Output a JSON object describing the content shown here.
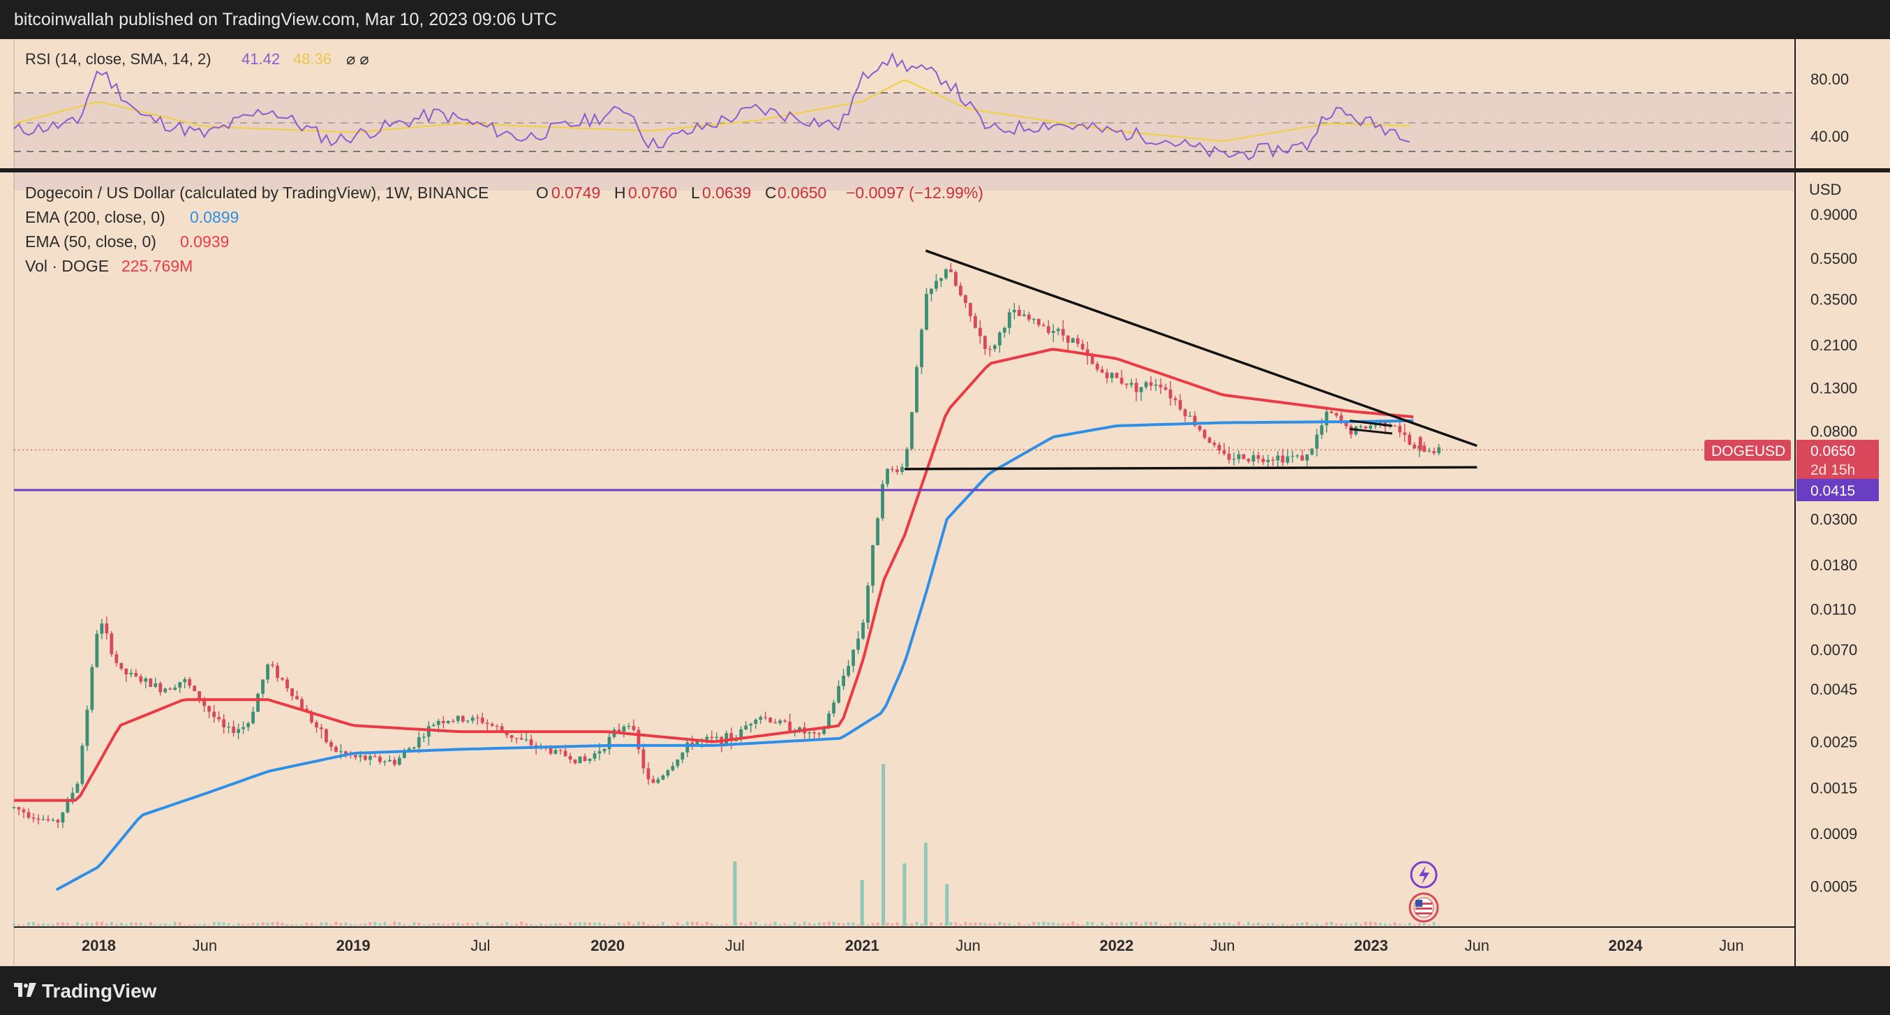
{
  "header": {
    "published": "bitcoinwallah published on TradingView.com, Mar 10, 2023 09:06 UTC"
  },
  "footer": {
    "brand": "TradingView"
  },
  "colors": {
    "background": "#f4dfca",
    "ema200": "#2f8fe6",
    "ema50": "#ea3a46",
    "rsi": "#8c5bd0",
    "rsi_sma": "#f0d040",
    "support": "#6a3ec2",
    "up": "#3b8f74",
    "down": "#d8485a"
  },
  "rsi_pane": {
    "legend": {
      "prefix": "RSI (14, close, SMA, 14, 2)",
      "rsi_value": "41.42",
      "sma_value": "48.36",
      "extra": "⌀ ⌀"
    },
    "scale": [
      "80.00",
      "40.00"
    ]
  },
  "main_pane": {
    "legend": {
      "title": "Dogecoin / US Dollar (calculated by TradingView), 1W, BINANCE",
      "o_label": "O",
      "o": "0.0749",
      "h_label": "H",
      "h": "0.0760",
      "l_label": "L",
      "l": "0.0639",
      "c_label": "C",
      "c": "0.0650",
      "chg": "−0.0097 (−12.99%)",
      "ema200": "EMA (200, close, 0)",
      "ema200_val": "0.0899",
      "ema50": "EMA (50, close, 0)",
      "ema50_val": "0.0939",
      "vol": "Vol · DOGE",
      "vol_val": "225.769M"
    },
    "currency": "USD",
    "price_badge": {
      "symbol": "DOGEUSD",
      "price": "0.0650",
      "countdown": "2d 15h"
    },
    "support_badge": "0.0415"
  },
  "chart_data": {
    "type": "candlestick",
    "title": "Dogecoin / US Dollar (calculated by TradingView), 1W, BINANCE",
    "y_scale": "log",
    "y_ticks": [
      "0.9000",
      "0.5500",
      "0.3500",
      "0.2100",
      "0.1300",
      "0.0800",
      "0.0650",
      "0.0415",
      "0.0300",
      "0.0180",
      "0.0110",
      "0.0070",
      "0.0045",
      "0.0025",
      "0.0015",
      "0.0009",
      "0.0005"
    ],
    "x_ticks": [
      "2018",
      "Jun",
      "2019",
      "Jul",
      "2020",
      "Jul",
      "2021",
      "Jun",
      "2022",
      "Jun",
      "2023",
      "Jun",
      "2024",
      "Jun"
    ],
    "x_range": [
      "2017-09",
      "2024-09"
    ],
    "last_ohlc": {
      "open": 0.0749,
      "high": 0.076,
      "low": 0.0639,
      "close": 0.065
    },
    "ema200_last": 0.0899,
    "ema50_last": 0.0939,
    "volume_last": "225.769M",
    "horizontal_line": 0.0415,
    "trendlines": [
      {
        "label": "descending resistance",
        "from": [
          "2021-04",
          0.6
        ],
        "to": [
          "2023-06",
          0.068
        ]
      },
      {
        "label": "flat support",
        "from": [
          "2021-03",
          0.0525
        ],
        "to": [
          "2023-06",
          0.0535
        ]
      }
    ],
    "price_path": [
      [
        "2017-09",
        0.0012
      ],
      [
        "2017-11",
        0.001
      ],
      [
        "2017-12",
        0.0016
      ],
      [
        "2018-01",
        0.01
      ],
      [
        "2018-02",
        0.0055
      ],
      [
        "2018-04",
        0.0045
      ],
      [
        "2018-05",
        0.005
      ],
      [
        "2018-07",
        0.0028
      ],
      [
        "2018-08",
        0.003
      ],
      [
        "2018-09",
        0.006
      ],
      [
        "2018-10",
        0.0045
      ],
      [
        "2018-12",
        0.0023
      ],
      [
        "2019-01",
        0.0021
      ],
      [
        "2019-03",
        0.002
      ],
      [
        "2019-05",
        0.0032
      ],
      [
        "2019-07",
        0.0032
      ],
      [
        "2019-09",
        0.0025
      ],
      [
        "2019-12",
        0.002
      ],
      [
        "2020-02",
        0.0032
      ],
      [
        "2020-03",
        0.0015
      ],
      [
        "2020-05",
        0.0025
      ],
      [
        "2020-07",
        0.0026
      ],
      [
        "2020-08",
        0.0034
      ],
      [
        "2020-11",
        0.0026
      ],
      [
        "2021-01",
        0.009
      ],
      [
        "2021-02",
        0.05
      ],
      [
        "2021-03",
        0.054
      ],
      [
        "2021-04",
        0.35
      ],
      [
        "2021-05",
        0.5
      ],
      [
        "2021-06",
        0.3
      ],
      [
        "2021-07",
        0.19
      ],
      [
        "2021-08",
        0.3
      ],
      [
        "2021-10",
        0.25
      ],
      [
        "2021-11",
        0.22
      ],
      [
        "2021-12",
        0.16
      ],
      [
        "2022-02",
        0.13
      ],
      [
        "2022-03",
        0.14
      ],
      [
        "2022-05",
        0.08
      ],
      [
        "2022-06",
        0.06
      ],
      [
        "2022-09",
        0.06
      ],
      [
        "2022-10",
        0.06
      ],
      [
        "2022-11",
        0.1
      ],
      [
        "2022-12",
        0.08
      ],
      [
        "2023-01",
        0.085
      ],
      [
        "2023-02",
        0.09
      ],
      [
        "2023-03",
        0.065
      ]
    ],
    "ema200_path": [
      [
        "2017-11",
        0.00048
      ],
      [
        "2018-01",
        0.00062
      ],
      [
        "2018-03",
        0.0011
      ],
      [
        "2018-06",
        0.0014
      ],
      [
        "2018-09",
        0.0018
      ],
      [
        "2019-01",
        0.0022
      ],
      [
        "2019-06",
        0.0023
      ],
      [
        "2020-01",
        0.0024
      ],
      [
        "2020-06",
        0.0024
      ],
      [
        "2020-12",
        0.0026
      ],
      [
        "2021-02",
        0.0035
      ],
      [
        "2021-03",
        0.006
      ],
      [
        "2021-04",
        0.013
      ],
      [
        "2021-05",
        0.03
      ],
      [
        "2021-07",
        0.05
      ],
      [
        "2021-10",
        0.075
      ],
      [
        "2022-01",
        0.085
      ],
      [
        "2022-06",
        0.088
      ],
      [
        "2022-12",
        0.089
      ],
      [
        "2023-03",
        0.0899
      ]
    ],
    "ema50_path": [
      [
        "2017-09",
        0.0013
      ],
      [
        "2017-12",
        0.0013
      ],
      [
        "2018-02",
        0.003
      ],
      [
        "2018-05",
        0.004
      ],
      [
        "2018-09",
        0.004
      ],
      [
        "2019-01",
        0.003
      ],
      [
        "2019-06",
        0.0028
      ],
      [
        "2020-01",
        0.0028
      ],
      [
        "2020-06",
        0.0025
      ],
      [
        "2020-12",
        0.003
      ],
      [
        "2021-01",
        0.006
      ],
      [
        "2021-02",
        0.015
      ],
      [
        "2021-03",
        0.025
      ],
      [
        "2021-05",
        0.1
      ],
      [
        "2021-07",
        0.17
      ],
      [
        "2021-10",
        0.2
      ],
      [
        "2022-01",
        0.18
      ],
      [
        "2022-06",
        0.12
      ],
      [
        "2022-12",
        0.1
      ],
      [
        "2023-03",
        0.0939
      ]
    ],
    "volume_spikes": [
      [
        "2020-07",
        0.31
      ],
      [
        "2021-01",
        0.22
      ],
      [
        "2021-02",
        0.78
      ],
      [
        "2021-03",
        0.3
      ],
      [
        "2021-04",
        0.4
      ],
      [
        "2021-05",
        0.2
      ]
    ],
    "rsi_path": [
      [
        "2017-09",
        45
      ],
      [
        "2017-12",
        50
      ],
      [
        "2018-01",
        88
      ],
      [
        "2018-03",
        55
      ],
      [
        "2018-06",
        42
      ],
      [
        "2018-09",
        60
      ],
      [
        "2018-12",
        38
      ],
      [
        "2019-05",
        57
      ],
      [
        "2019-09",
        40
      ],
      [
        "2020-02",
        60
      ],
      [
        "2020-03",
        35
      ],
      [
        "2020-08",
        60
      ],
      [
        "2020-12",
        48
      ],
      [
        "2021-01",
        80
      ],
      [
        "2021-02",
        95
      ],
      [
        "2021-05",
        80
      ],
      [
        "2021-07",
        45
      ],
      [
        "2021-10",
        50
      ],
      [
        "2022-03",
        40
      ],
      [
        "2022-06",
        28
      ],
      [
        "2022-10",
        35
      ],
      [
        "2022-11",
        60
      ],
      [
        "2023-01",
        50
      ],
      [
        "2023-03",
        41.42
      ]
    ],
    "rsi_sma_path": [
      [
        "2017-09",
        50
      ],
      [
        "2018-01",
        65
      ],
      [
        "2018-06",
        48
      ],
      [
        "2019-01",
        44
      ],
      [
        "2019-06",
        50
      ],
      [
        "2020-03",
        45
      ],
      [
        "2020-08",
        52
      ],
      [
        "2021-01",
        65
      ],
      [
        "2021-03",
        80
      ],
      [
        "2021-06",
        60
      ],
      [
        "2022-01",
        45
      ],
      [
        "2022-06",
        38
      ],
      [
        "2022-11",
        50
      ],
      [
        "2023-03",
        48.36
      ]
    ]
  }
}
